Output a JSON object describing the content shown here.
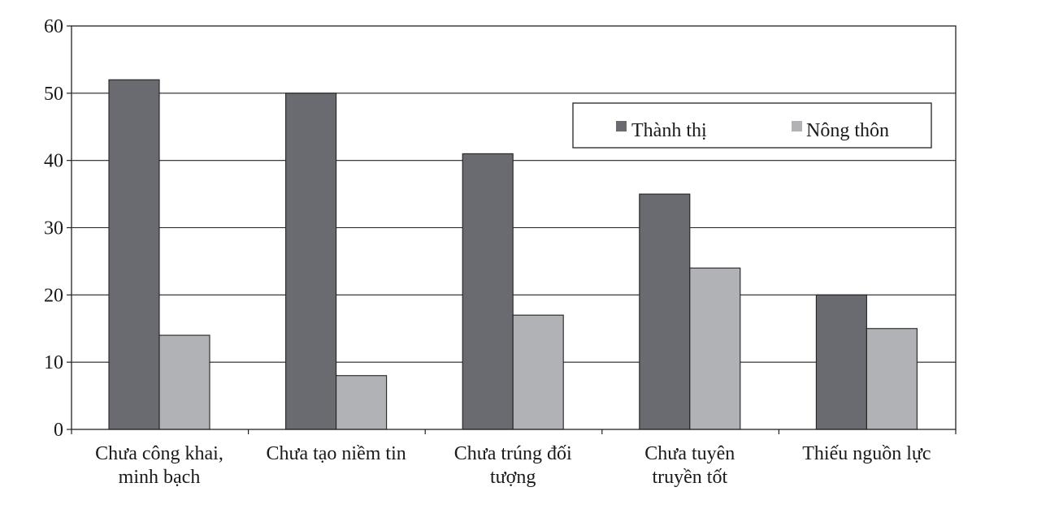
{
  "chart_data": {
    "type": "bar",
    "title": "",
    "xlabel": "",
    "ylabel": "",
    "ylim": [
      0,
      60
    ],
    "yticks": [
      0,
      10,
      20,
      30,
      40,
      50,
      60
    ],
    "grid": true,
    "legend_position": "top-right",
    "categories": [
      [
        "Chưa công khai,",
        "minh bạch"
      ],
      [
        "Chưa tạo niềm tin"
      ],
      [
        "Chưa trúng đối",
        "tượng"
      ],
      [
        "Chưa tuyên",
        "truyền tốt"
      ],
      [
        "Thiếu nguồn lực"
      ]
    ],
    "series": [
      {
        "name": "Thành thị",
        "color": "#6a6b70",
        "values": [
          52,
          50,
          41,
          35,
          20
        ]
      },
      {
        "name": "Nông thôn",
        "color": "#b1b2b6",
        "values": [
          14,
          8,
          17,
          24,
          15
        ]
      }
    ]
  }
}
